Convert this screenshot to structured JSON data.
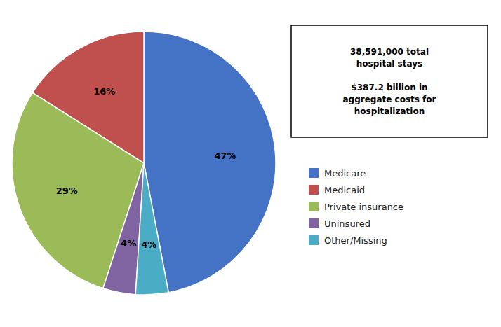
{
  "chart_data": {
    "type": "pie",
    "categories": [
      "Medicare",
      "Medicaid",
      "Private insurance",
      "Uninsured",
      "Other/Missing"
    ],
    "values": [
      47,
      16,
      29,
      4,
      4
    ],
    "value_labels": [
      "47%",
      "16%",
      "29%",
      "4%",
      "4%"
    ],
    "colors": [
      "#4472C4",
      "#C0504D",
      "#9BBB59",
      "#8064A2",
      "#4BACC6"
    ],
    "data_labels": true,
    "legend": "right",
    "annotation": "38,591,000 total\nhospital stays\n\n$387.2 billion in\naggregate costs for\nhospitalization"
  }
}
